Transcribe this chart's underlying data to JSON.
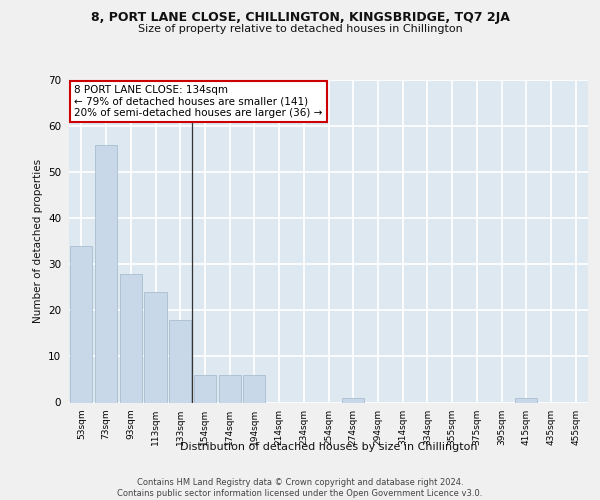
{
  "title1": "8, PORT LANE CLOSE, CHILLINGTON, KINGSBRIDGE, TQ7 2JA",
  "title2": "Size of property relative to detached houses in Chillington",
  "xlabel": "Distribution of detached houses by size in Chillington",
  "ylabel": "Number of detached properties",
  "categories": [
    "53sqm",
    "73sqm",
    "93sqm",
    "113sqm",
    "133sqm",
    "154sqm",
    "174sqm",
    "194sqm",
    "214sqm",
    "234sqm",
    "254sqm",
    "274sqm",
    "294sqm",
    "314sqm",
    "334sqm",
    "355sqm",
    "375sqm",
    "395sqm",
    "415sqm",
    "435sqm",
    "455sqm"
  ],
  "values": [
    34,
    56,
    28,
    24,
    18,
    6,
    6,
    6,
    0,
    0,
    0,
    1,
    0,
    0,
    0,
    0,
    0,
    0,
    1,
    0,
    0
  ],
  "bar_color": "#c8d8e8",
  "bar_edge_color": "#a0b8cc",
  "annotation_line": "8 PORT LANE CLOSE: 134sqm",
  "annotation_line2": "← 79% of detached houses are smaller (141)",
  "annotation_line3": "20% of semi-detached houses are larger (36) →",
  "annotation_box_color": "#ffffff",
  "annotation_box_edge": "#cc0000",
  "ylim": [
    0,
    70
  ],
  "yticks": [
    0,
    10,
    20,
    30,
    40,
    50,
    60,
    70
  ],
  "background_color": "#dde8f0",
  "grid_color": "#ffffff",
  "footer": "Contains HM Land Registry data © Crown copyright and database right 2024.\nContains public sector information licensed under the Open Government Licence v3.0.",
  "fig_bg": "#f0f0f0"
}
